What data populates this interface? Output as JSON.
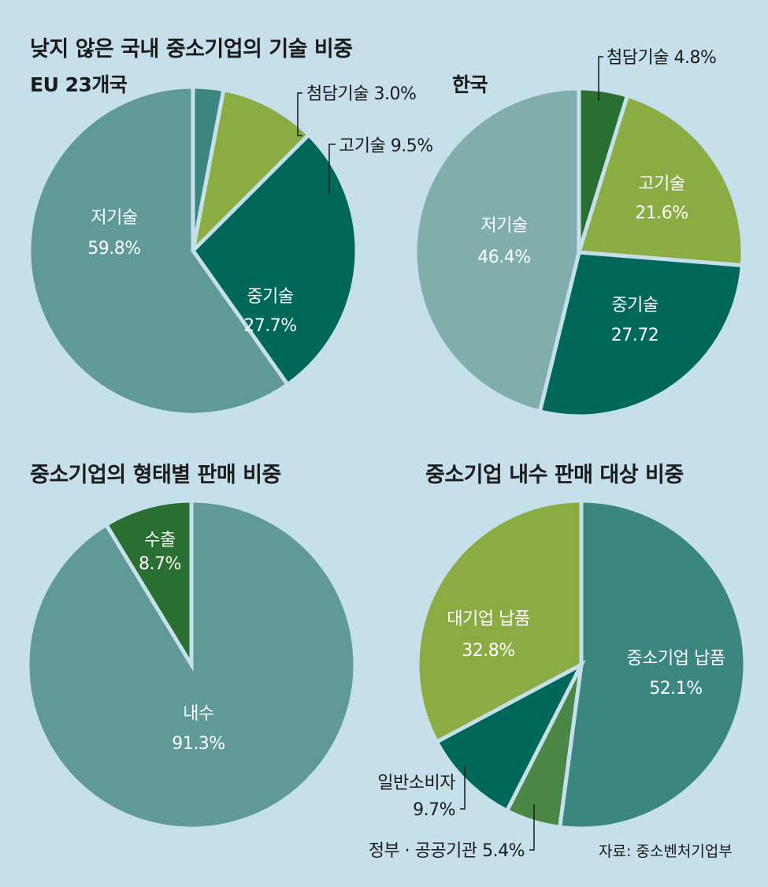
{
  "titles": {
    "main": "낮지 않은 국내 중소기업의 기술 비중",
    "sales_type": "중소기업의 형태별 판매 비중",
    "domestic_target": "중소기업 내수 판매 대상 비중"
  },
  "source": "자료: 중소벤처기업부",
  "colors": {
    "background": "#c5e0ea",
    "low_eu": "#5f9a96",
    "low_kr": "#80aeaa",
    "mid": "#00685a",
    "high": "#8aac42",
    "frontier_eu": "#3b8680",
    "frontier_kr": "#2a6f32",
    "domestic": "#5f9a96",
    "export": "#2a6f32",
    "sme_supply": "#3b8680",
    "large_supply": "#8aac42",
    "consumer": "#00685a",
    "government": "#4a8745"
  },
  "chart_data": [
    {
      "type": "pie",
      "title": "EU 23개국",
      "slices": [
        {
          "label": "첨담기술",
          "value": 3.0,
          "value_text": "3.0%",
          "color": "#3b8680"
        },
        {
          "label": "고기술",
          "value": 9.5,
          "value_text": "9.5%",
          "color": "#8aac42"
        },
        {
          "label": "중기술",
          "value": 27.7,
          "value_text": "27.7%",
          "color": "#00685a"
        },
        {
          "label": "저기술",
          "value": 59.8,
          "value_text": "59.8%",
          "color": "#5f9a96"
        }
      ]
    },
    {
      "type": "pie",
      "title": "한국",
      "slices": [
        {
          "label": "첨담기술",
          "value": 4.8,
          "value_text": "4.8%",
          "color": "#2a6f32"
        },
        {
          "label": "고기술",
          "value": 21.6,
          "value_text": "21.6%",
          "color": "#8aac42"
        },
        {
          "label": "중기술",
          "value": 27.72,
          "value_text": "27.72",
          "color": "#00685a"
        },
        {
          "label": "저기술",
          "value": 46.4,
          "value_text": "46.4%",
          "color": "#80aeaa"
        }
      ]
    },
    {
      "type": "pie",
      "title": "중소기업의 형태별 판매 비중",
      "slices": [
        {
          "label": "내수",
          "value": 91.3,
          "value_text": "91.3%",
          "color": "#5f9a96"
        },
        {
          "label": "수출",
          "value": 8.7,
          "value_text": "8.7%",
          "color": "#2a6f32"
        }
      ]
    },
    {
      "type": "pie",
      "title": "중소기업 내수 판매 대상 비중",
      "slices": [
        {
          "label": "중소기업 납품",
          "value": 52.1,
          "value_text": "52.1%",
          "color": "#3b8680"
        },
        {
          "label": "정부 · 공공기관",
          "value": 5.4,
          "value_text": "5.4%",
          "color": "#4a8745"
        },
        {
          "label": "일반소비자",
          "value": 9.7,
          "value_text": "9.7%",
          "color": "#00685a"
        },
        {
          "label": "대기업 납품",
          "value": 32.8,
          "value_text": "32.8%",
          "color": "#8aac42"
        }
      ]
    }
  ]
}
